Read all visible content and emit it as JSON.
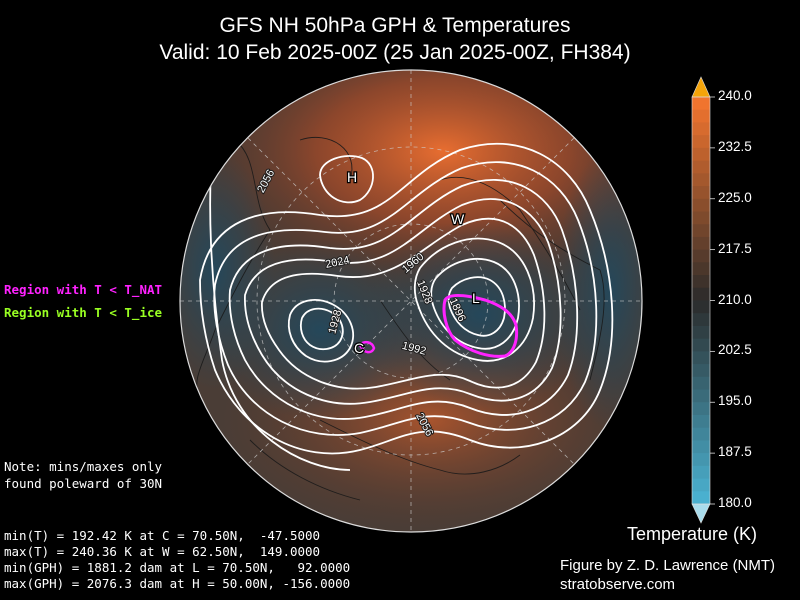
{
  "header": {
    "title_line1": "GFS NH 50hPa GPH & Temperatures",
    "title_line2": "Valid: 10 Feb 2025-00Z  (25 Jan 2025-00Z, FH384)"
  },
  "legend": {
    "nat_label": "Region with T < T_NAT",
    "nat_color": "#ff22ff",
    "ice_label": "Region with T < T_ice",
    "ice_color": "#99ff22"
  },
  "note": {
    "line1": "Note: mins/maxes only",
    "line2": "found poleward of 30N"
  },
  "stats": {
    "min_t": "min(T) = 192.42 K at C = 70.50N,  -47.5000",
    "max_t": "max(T) = 240.36 K at W = 62.50N,  149.0000",
    "min_gph": "min(GPH) = 1881.2 dam at L = 70.50N,   92.0000",
    "max_gph": "max(GPH) = 2076.3 dam at H = 50.00N, -156.0000"
  },
  "credit": {
    "line1": "Figure by Z. D. Lawrence (NMT)",
    "line2": "stratobserve.com"
  },
  "map": {
    "markers": {
      "H": "H",
      "W": "W",
      "L": "L",
      "C": "C"
    },
    "contour_labels": [
      "2056",
      "2024",
      "1960",
      "1928",
      "1896",
      "1928",
      "1992",
      "2056"
    ]
  },
  "colorbar": {
    "title": "Temperature (K)",
    "ticks": [
      "240.0",
      "232.5",
      "225.0",
      "217.5",
      "210.0",
      "202.5",
      "195.0",
      "187.5",
      "180.0"
    ],
    "min": 180.0,
    "max": 240.0,
    "warm_color": "#f0742e",
    "neutral_color": "#2b2b2b",
    "cold_color": "#4ab0cf"
  }
}
